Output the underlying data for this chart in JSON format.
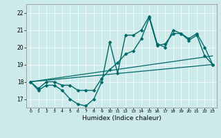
{
  "xlabel": "Humidex (Indice chaleur)",
  "xlim": [
    -0.5,
    23.5
  ],
  "ylim": [
    16.5,
    22.5
  ],
  "yticks": [
    17,
    18,
    19,
    20,
    21,
    22
  ],
  "xticks": [
    0,
    1,
    2,
    3,
    4,
    5,
    6,
    7,
    8,
    9,
    10,
    11,
    12,
    13,
    14,
    15,
    16,
    17,
    18,
    19,
    20,
    21,
    22,
    23
  ],
  "bg_color": "#cceaea",
  "line_color": "#006868",
  "lines": [
    {
      "x": [
        0,
        1,
        2,
        3,
        4,
        5,
        6,
        7,
        8,
        9,
        10,
        11,
        12,
        13,
        14,
        15,
        16,
        17,
        18,
        19,
        20,
        21,
        22,
        23
      ],
      "y": [
        18.0,
        17.5,
        17.8,
        17.8,
        17.5,
        17.0,
        16.7,
        16.6,
        17.0,
        18.0,
        20.3,
        18.5,
        20.7,
        20.7,
        21.0,
        21.8,
        20.2,
        20.0,
        21.0,
        20.8,
        20.4,
        20.7,
        19.5,
        19.0
      ],
      "marker": "D",
      "markersize": 2.5,
      "linewidth": 1.0,
      "with_markers": true
    },
    {
      "x": [
        0,
        1,
        2,
        3,
        4,
        5,
        6,
        7,
        8,
        9,
        10,
        11,
        12,
        13,
        14,
        15,
        16,
        17,
        18,
        19,
        20,
        21,
        22,
        23
      ],
      "y": [
        18.0,
        17.6,
        18.0,
        18.0,
        17.8,
        17.8,
        17.5,
        17.5,
        17.5,
        18.2,
        18.7,
        19.1,
        19.6,
        19.8,
        20.5,
        21.7,
        20.1,
        20.2,
        20.8,
        20.8,
        20.5,
        20.8,
        20.0,
        19.0
      ],
      "marker": "D",
      "markersize": 2.5,
      "linewidth": 1.0,
      "with_markers": true
    },
    {
      "x": [
        0,
        23
      ],
      "y": [
        18.0,
        19.0
      ],
      "marker": null,
      "markersize": 0,
      "linewidth": 0.9,
      "with_markers": false
    },
    {
      "x": [
        0,
        23
      ],
      "y": [
        18.0,
        19.5
      ],
      "marker": null,
      "markersize": 0,
      "linewidth": 0.9,
      "with_markers": false
    }
  ]
}
